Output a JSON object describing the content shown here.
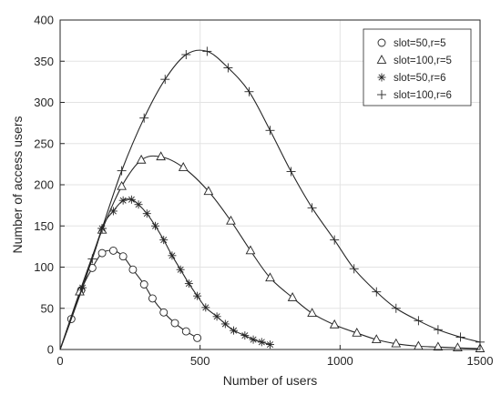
{
  "chart_data": {
    "type": "line",
    "title": "",
    "xlabel": "Number of users",
    "ylabel": "Number of access users",
    "xlim": [
      0,
      1500
    ],
    "ylim": [
      0,
      400
    ],
    "xticks": [
      0,
      500,
      1000,
      1500
    ],
    "yticks": [
      0,
      50,
      100,
      150,
      200,
      250,
      300,
      350,
      400
    ],
    "grid": true,
    "legend_position": "top-right",
    "series": [
      {
        "name": "slot=50,r=5",
        "marker": "circle",
        "x": [
          0,
          40,
          75,
          115,
          150,
          190,
          225,
          260,
          300,
          330,
          370,
          410,
          450,
          490
        ],
        "y": [
          0,
          37,
          72,
          99,
          117,
          120,
          113,
          97,
          79,
          62,
          45,
          32,
          22,
          14
        ]
      },
      {
        "name": "slot=100,r=5",
        "marker": "triangle",
        "x": [
          0,
          70,
          150,
          220,
          290,
          360,
          440,
          530,
          610,
          680,
          750,
          830,
          900,
          980,
          1060,
          1130,
          1200,
          1280,
          1350,
          1420,
          1500
        ],
        "y": [
          0,
          70,
          145,
          198,
          230,
          234,
          221,
          192,
          156,
          120,
          87,
          63,
          44,
          30,
          20,
          12,
          7,
          4,
          3,
          2,
          1
        ]
      },
      {
        "name": "slot=50,r=6",
        "marker": "asterisk",
        "x": [
          0,
          80,
          150,
          190,
          225,
          255,
          280,
          310,
          340,
          370,
          400,
          430,
          460,
          490,
          520,
          560,
          590,
          620,
          660,
          690,
          720,
          750
        ],
        "y": [
          0,
          75,
          147,
          168,
          181,
          182,
          176,
          165,
          150,
          133,
          114,
          97,
          80,
          65,
          51,
          40,
          31,
          23,
          17,
          12,
          9,
          6
        ]
      },
      {
        "name": "slot=100,r=6",
        "marker": "plus",
        "x": [
          0,
          115,
          150,
          220,
          300,
          375,
          450,
          525,
          600,
          675,
          750,
          825,
          900,
          980,
          1050,
          1130,
          1200,
          1280,
          1350,
          1430,
          1500
        ],
        "y": [
          0,
          110,
          147,
          217,
          281,
          328,
          358,
          362,
          342,
          313,
          266,
          216,
          172,
          133,
          98,
          70,
          50,
          35,
          24,
          15,
          9
        ]
      }
    ]
  }
}
